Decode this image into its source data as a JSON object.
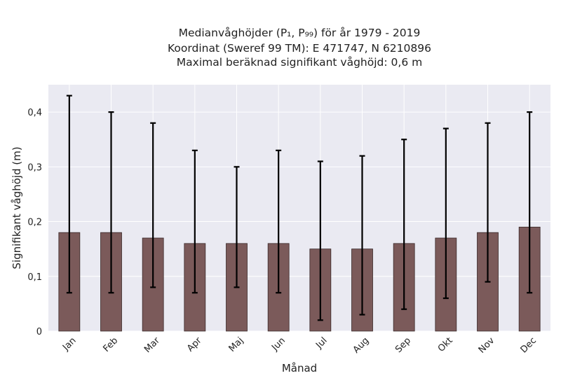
{
  "chart_data": {
    "type": "bar",
    "title_lines": [
      "Medianvåghöjder (P₁, P₉₉) för år 1979 - 2019",
      "Koordinat (Sweref 99 TM): E 471747, N 6210896",
      "Maximal beräknad signifikant våghöjd: 0,6 m"
    ],
    "xlabel": "Månad",
    "ylabel": "Signifikant våghöjd (m)",
    "categories": [
      "Jan",
      "Feb",
      "Mar",
      "Apr",
      "Maj",
      "Jun",
      "Jul",
      "Aug",
      "Sep",
      "Okt",
      "Nov",
      "Dec"
    ],
    "values": [
      0.18,
      0.18,
      0.17,
      0.16,
      0.16,
      0.16,
      0.15,
      0.15,
      0.16,
      0.17,
      0.18,
      0.19
    ],
    "p1": [
      0.07,
      0.07,
      0.08,
      0.07,
      0.08,
      0.07,
      0.02,
      0.03,
      0.04,
      0.06,
      0.09,
      0.07
    ],
    "p99": [
      0.43,
      0.4,
      0.38,
      0.33,
      0.3,
      0.33,
      0.31,
      0.32,
      0.35,
      0.37,
      0.38,
      0.4
    ],
    "ylim": [
      0,
      0.45
    ],
    "yticks": [
      0,
      0.1,
      0.2,
      0.3,
      0.4
    ],
    "ytick_labels": [
      "0",
      "0,1",
      "0,2",
      "0,3",
      "0,4"
    ],
    "grid": true,
    "colors": {
      "background": "#eaeaf2",
      "grid": "#ffffff",
      "bar": "#7b5a5a",
      "bar_edge": "#3a2a2a",
      "errorbar": "#000000"
    }
  }
}
